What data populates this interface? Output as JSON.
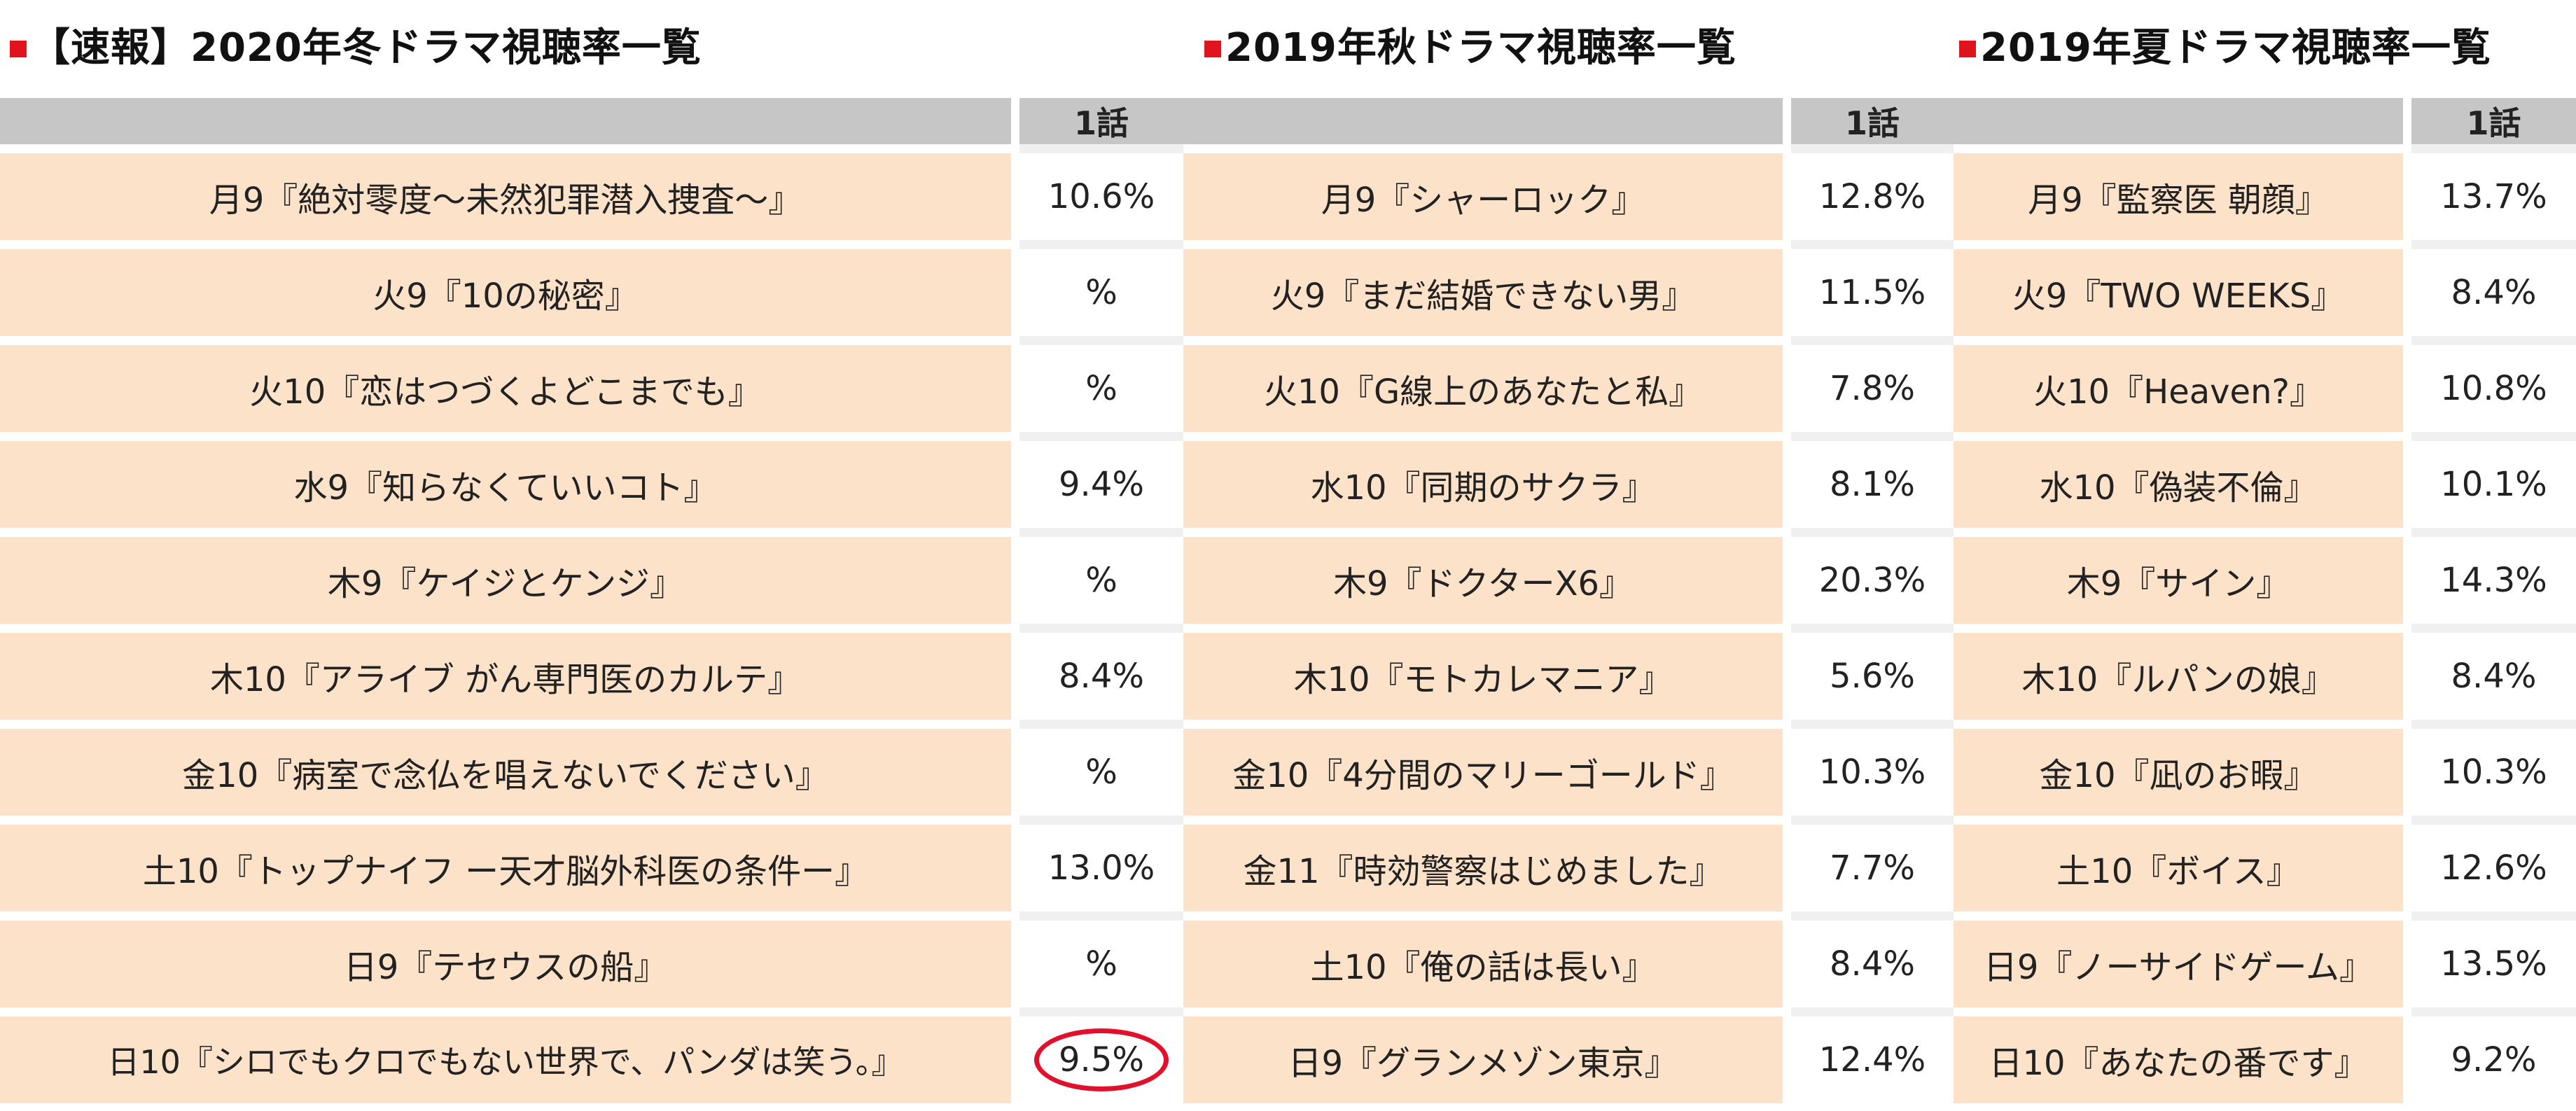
{
  "panels": [
    {
      "title": "【速報】2020年冬ドラマ視聴率一覧",
      "episode_header": "1話",
      "rows": [
        {
          "show": "月9『絶対零度〜未然犯罪潜入捜査〜』",
          "rating": "10.6%"
        },
        {
          "show": "火9『10の秘密』",
          "rating": "%"
        },
        {
          "show": "火10『恋はつづくよどこまでも』",
          "rating": "%"
        },
        {
          "show": "水9『知らなくていいコト』",
          "rating": "9.4%"
        },
        {
          "show": "木9『ケイジとケンジ』",
          "rating": "%"
        },
        {
          "show": "木10『アライブ がん専門医のカルテ』",
          "rating": "8.4%"
        },
        {
          "show": "金10『病室で念仏を唱えないでください』",
          "rating": "%"
        },
        {
          "show": "土10『トップナイフ ー天才脳外科医の条件ー』",
          "rating": "13.0%"
        },
        {
          "show": "日9『テセウスの船』",
          "rating": "%"
        },
        {
          "show": "日10『シロでもクロでもない世界で、パンダは笑う。』",
          "rating": "9.5%"
        }
      ]
    },
    {
      "title": "2019年秋ドラマ視聴率一覧",
      "episode_header": "1話",
      "rows": [
        {
          "show": "月9『シャーロック』",
          "rating": "12.8%"
        },
        {
          "show": "火9『まだ結婚できない男』",
          "rating": "11.5%"
        },
        {
          "show": "火10『G線上のあなたと私』",
          "rating": "7.8%"
        },
        {
          "show": "水10『同期のサクラ』",
          "rating": "8.1%"
        },
        {
          "show": "木9『ドクターX6』",
          "rating": "20.3%"
        },
        {
          "show": "木10『モトカレマニア』",
          "rating": "5.6%"
        },
        {
          "show": "金10『4分間のマリーゴールド』",
          "rating": "10.3%"
        },
        {
          "show": "金11『時効警察はじめました』",
          "rating": "7.7%"
        },
        {
          "show": "土10『俺の話は長い』",
          "rating": "8.4%"
        },
        {
          "show": "日9『グランメゾン東京』",
          "rating": "12.4%"
        }
      ]
    },
    {
      "title": "2019年夏ドラマ視聴率一覧",
      "episode_header": "1話",
      "rows": [
        {
          "show": "月9『監察医 朝顔』",
          "rating": "13.7%"
        },
        {
          "show": "火9『TWO WEEKS』",
          "rating": "8.4%"
        },
        {
          "show": "火10『Heaven?』",
          "rating": "10.8%"
        },
        {
          "show": "水10『偽装不倫』",
          "rating": "10.1%"
        },
        {
          "show": "木9『サイン』",
          "rating": "14.3%"
        },
        {
          "show": "木10『ルパンの娘』",
          "rating": "8.4%"
        },
        {
          "show": "金10『凪のお暇』",
          "rating": "10.3%"
        },
        {
          "show": "土10『ボイス』",
          "rating": "12.6%"
        },
        {
          "show": "日9『ノーサイドゲーム』",
          "rating": "13.5%"
        },
        {
          "show": "日10『あなたの番です』",
          "rating": "9.2%"
        }
      ]
    }
  ],
  "highlight": {
    "panel": 0,
    "row": 9,
    "color": "#e2102a"
  },
  "colors": {
    "title_square": "#e1141e",
    "header_bg": "#c6c6c6",
    "show_cell_bg": "#fbe2c8"
  }
}
